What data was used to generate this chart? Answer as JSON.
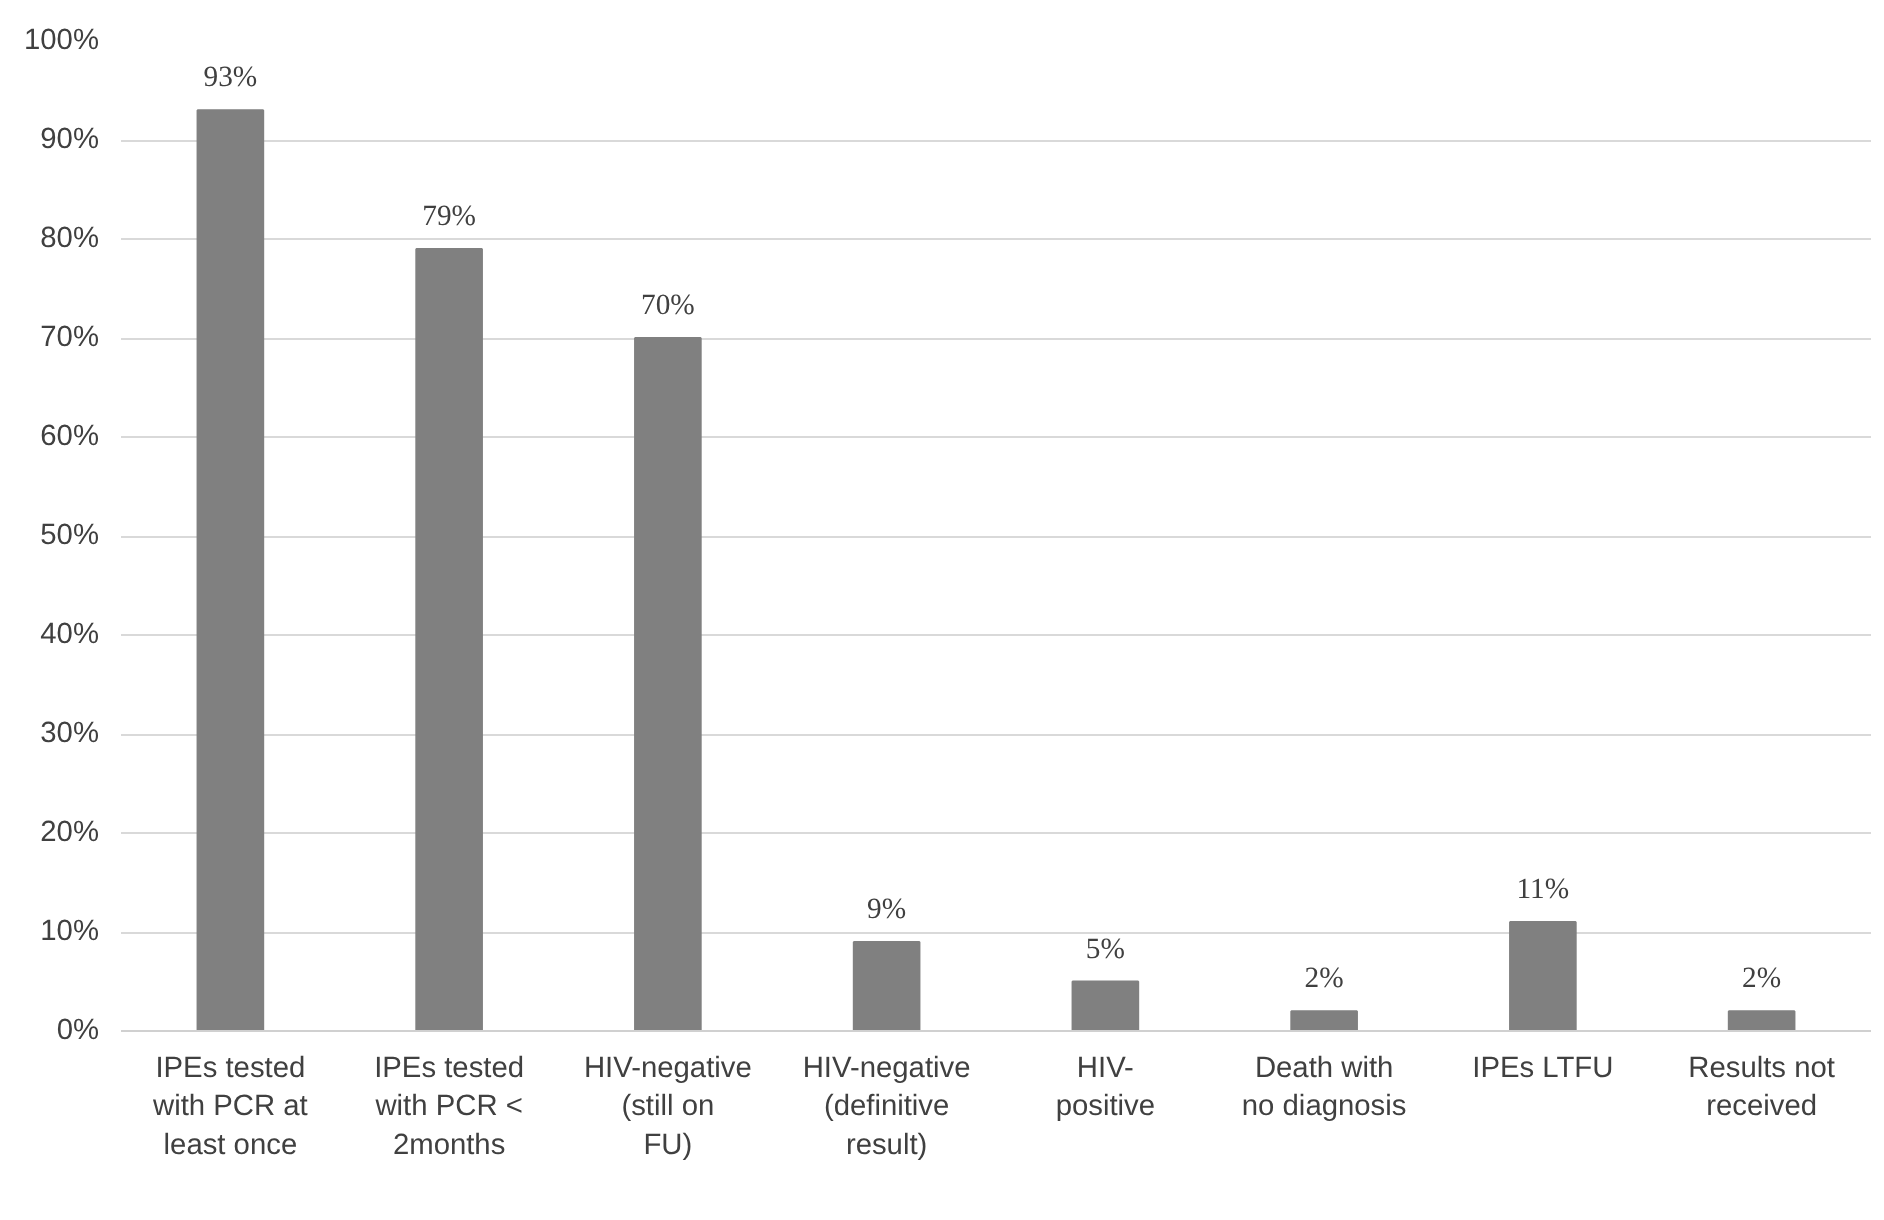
{
  "chart_data": {
    "type": "bar",
    "categories": [
      "IPEs tested with PCR at least once",
      "IPEs tested with PCR < 2months",
      "HIV-negative (still on FU)",
      "HIV-negative (definitive result)",
      "HIV- positive",
      "Death with no diagnosis",
      "IPEs LTFU",
      "Results not received"
    ],
    "values": [
      93,
      79,
      70,
      9,
      5,
      2,
      11,
      2
    ],
    "value_labels": [
      "93%",
      "79%",
      "70%",
      "9%",
      "5%",
      "2%",
      "11%",
      "2%"
    ],
    "color": "#808080",
    "ylim": [
      0,
      100
    ],
    "yticks": [
      {
        "value": 0,
        "label": "0%"
      },
      {
        "value": 10,
        "label": "10%"
      },
      {
        "value": 20,
        "label": "20%"
      },
      {
        "value": 30,
        "label": "30%"
      },
      {
        "value": 40,
        "label": "40%"
      },
      {
        "value": 50,
        "label": "50%"
      },
      {
        "value": 60,
        "label": "60%"
      },
      {
        "value": 70,
        "label": "70%"
      },
      {
        "value": 80,
        "label": "80%"
      },
      {
        "value": 90,
        "label": "90%"
      },
      {
        "value": 100,
        "label": "100%"
      }
    ],
    "grid": "y"
  }
}
